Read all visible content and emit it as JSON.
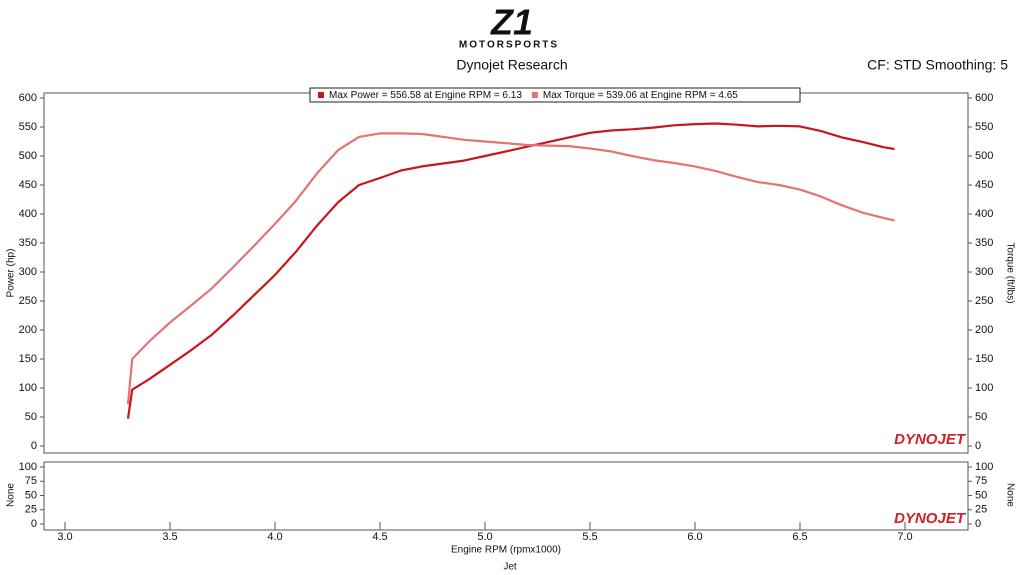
{
  "logo": {
    "mark": "Z1",
    "text": "MOTORSPORTS"
  },
  "footer": "Jet",
  "chart_data": [
    {
      "type": "line",
      "title": "Dynojet Research",
      "subtitle": "CF: STD Smoothing: 5",
      "ylabel": "Power (hp)",
      "y2label": "Torque (ft/lbs)",
      "xlabel": "Engine RPM (rpmx1000)",
      "watermark": "DYNOJET",
      "x": [
        3.3,
        3.32,
        3.4,
        3.5,
        3.6,
        3.7,
        3.8,
        3.9,
        4.0,
        4.1,
        4.2,
        4.3,
        4.4,
        4.5,
        4.6,
        4.7,
        4.8,
        4.9,
        5.0,
        5.1,
        5.2,
        5.3,
        5.4,
        5.5,
        5.6,
        5.7,
        5.8,
        5.9,
        6.0,
        6.1,
        6.2,
        6.3,
        6.4,
        6.5,
        6.6,
        6.7,
        6.8,
        6.9,
        6.95
      ],
      "series": [
        {
          "name": "Max Power = 556.58 at Engine RPM = 6.13",
          "color": "#c8161d",
          "values": [
            47,
            97,
            115,
            140,
            165,
            192,
            225,
            260,
            295,
            335,
            380,
            420,
            450,
            462,
            475,
            482,
            487,
            492,
            500,
            508,
            516,
            524,
            532,
            540,
            544,
            546,
            549,
            553,
            555,
            556,
            554,
            551,
            552,
            551,
            543,
            532,
            524,
            515,
            512
          ]
        },
        {
          "name": "Max Torque = 539.06 at Engine RPM = 4.65",
          "color": "#e57373",
          "axis": "y2",
          "values": [
            72,
            150,
            180,
            213,
            242,
            272,
            308,
            345,
            383,
            423,
            470,
            510,
            533,
            539,
            539,
            538,
            533,
            528,
            525,
            522,
            519,
            518,
            517,
            513,
            508,
            500,
            493,
            488,
            482,
            474,
            464,
            455,
            450,
            442,
            430,
            415,
            402,
            393,
            389
          ]
        }
      ],
      "xlim": [
        2.9,
        7.3
      ],
      "xticks": [
        {
          "value": 3,
          "label": "3.0"
        },
        3.5,
        {
          "value": 4,
          "label": "4.0"
        },
        4.5,
        {
          "value": 5,
          "label": "5.0"
        },
        5.5,
        {
          "value": 6,
          "label": "6.0"
        },
        6.5,
        {
          "value": 7,
          "label": "7.0"
        }
      ],
      "ylim": [
        0,
        600
      ],
      "yticks": [
        0,
        50,
        100,
        150,
        200,
        250,
        300,
        350,
        400,
        450,
        500,
        550,
        600
      ],
      "y2lim": [
        0,
        600
      ],
      "y2ticks": [
        0,
        50,
        100,
        150,
        200,
        250,
        300,
        350,
        400,
        450,
        500,
        550,
        600
      ],
      "legend": "top"
    },
    {
      "type": "line",
      "ylabel": "None",
      "y2label": "None",
      "watermark": "DYNOJET",
      "ylim": [
        0,
        100
      ],
      "yticks": [
        0,
        25,
        50,
        75,
        100
      ],
      "y2lim": [
        0,
        100
      ],
      "y2ticks": [
        0,
        25,
        50,
        75,
        100
      ]
    }
  ]
}
